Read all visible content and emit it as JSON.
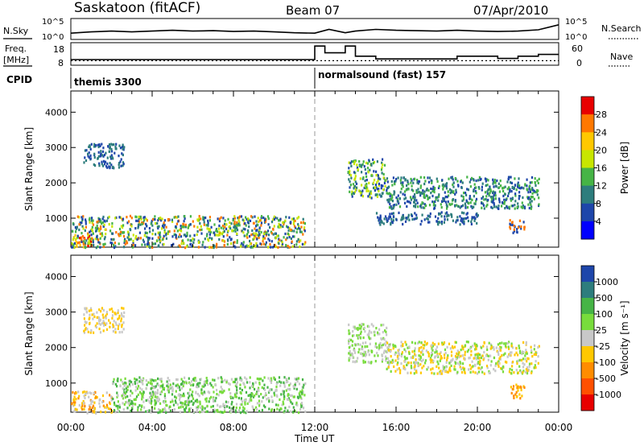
{
  "header": {
    "station": "Saskatoon (fitACF)",
    "beam": "Beam 07",
    "date": "07/Apr/2010"
  },
  "top_panels": {
    "nsky_label": "N.Sky",
    "nsky_ticks": [
      "10^5",
      "10^0"
    ],
    "nsearch_label": "N.Search",
    "nsearch_ticks": [
      "10^5",
      "10^0"
    ],
    "freq_label_1": "Freq.",
    "freq_label_2": "[MHz]",
    "freq_ticks": [
      "18",
      "8"
    ],
    "nave_label": "Nave",
    "nave_ticks": [
      "60",
      "0"
    ],
    "cpid_label": "CPID",
    "cpid_segments": [
      {
        "label": "themis 3300",
        "start": 0,
        "end": 12
      },
      {
        "label": "normalsound (fast) 157",
        "start": 12,
        "end": 24
      }
    ],
    "nsky_trace": [
      [
        0,
        1.5
      ],
      [
        1,
        1.8
      ],
      [
        2,
        2
      ],
      [
        3,
        1.8
      ],
      [
        4,
        2
      ],
      [
        5,
        2.2
      ],
      [
        6,
        2
      ],
      [
        7,
        2.1
      ],
      [
        8,
        1.9
      ],
      [
        9,
        2
      ],
      [
        10,
        1.8
      ],
      [
        11,
        1.6
      ],
      [
        12,
        1.5
      ],
      [
        12.7,
        2.4
      ],
      [
        13.5,
        1.6
      ],
      [
        14,
        2
      ],
      [
        15,
        2.4
      ],
      [
        16,
        2.2
      ],
      [
        17,
        2.1
      ],
      [
        18,
        2
      ],
      [
        19,
        2.2
      ],
      [
        20,
        2
      ],
      [
        21,
        1.9
      ],
      [
        22,
        2
      ],
      [
        23,
        2.3
      ],
      [
        24,
        3.5
      ]
    ],
    "freq_trace": [
      [
        0,
        10.5
      ],
      [
        12,
        10.5
      ],
      [
        12,
        16.5
      ],
      [
        12.5,
        16.5
      ],
      [
        12.5,
        13.5
      ],
      [
        13.5,
        13.5
      ],
      [
        13.5,
        16.5
      ],
      [
        14,
        16.5
      ],
      [
        14,
        12
      ],
      [
        15,
        12
      ],
      [
        15,
        10.8
      ],
      [
        19,
        10.8
      ],
      [
        19,
        12
      ],
      [
        21,
        12
      ],
      [
        21,
        11
      ],
      [
        22,
        11
      ],
      [
        22,
        12
      ],
      [
        23,
        12
      ],
      [
        23,
        12.8
      ],
      [
        24,
        12.8
      ]
    ],
    "nave_dotted_level": 12
  },
  "chart_data": [
    {
      "type": "heatmap",
      "title": "Power",
      "xlabel": "",
      "ylabel": "Slant Range [km]",
      "xlim": [
        0,
        24
      ],
      "ylim": [
        180,
        4600
      ],
      "xticks": [
        "00:00",
        "04:00",
        "08:00",
        "12:00",
        "16:00",
        "20:00",
        "00:00"
      ],
      "yticks": [
        1000,
        2000,
        3000,
        4000
      ],
      "colorbar_label": "Power [dB]",
      "colorbar_ticks": [
        "28",
        "24",
        "20",
        "16",
        "12",
        "8",
        "4"
      ],
      "colorbar_colors": [
        "#e80000",
        "#ff7800",
        "#ffc800",
        "#c8e600",
        "#46b446",
        "#2d7d7d",
        "#1e46aa",
        "#0000ff"
      ],
      "regions": [
        {
          "t0": 0,
          "t1": 1.0,
          "r0": 180,
          "r1": 600,
          "colors": [
            "#e80000",
            "#ff7800",
            "#ffc800"
          ]
        },
        {
          "t0": 0,
          "t1": 11.5,
          "r0": 200,
          "r1": 1100,
          "colors": [
            "#1e46aa",
            "#46b446",
            "#c8e600",
            "#ff7800",
            "#2d7d7d"
          ]
        },
        {
          "t0": 0.6,
          "t1": 2.6,
          "r0": 2450,
          "r1": 3150,
          "colors": [
            "#1e46aa",
            "#2d7d7d"
          ]
        },
        {
          "t0": 13.6,
          "t1": 15.5,
          "r0": 1600,
          "r1": 2700,
          "colors": [
            "#1e46aa",
            "#2d7d7d",
            "#46b446",
            "#c8e600"
          ]
        },
        {
          "t0": 15.5,
          "t1": 23.0,
          "r0": 1300,
          "r1": 2200,
          "colors": [
            "#1e46aa",
            "#2d7d7d",
            "#46b446"
          ]
        },
        {
          "t0": 15.0,
          "t1": 20.0,
          "r0": 850,
          "r1": 1200,
          "colors": [
            "#1e46aa",
            "#2d7d7d"
          ]
        },
        {
          "t0": 21.5,
          "t1": 22.3,
          "r0": 600,
          "r1": 1000,
          "colors": [
            "#1e46aa",
            "#ff7800"
          ]
        }
      ]
    },
    {
      "type": "heatmap",
      "title": "Velocity",
      "xlabel": "Time UT",
      "ylabel": "Slant Range [km]",
      "xlim": [
        0,
        24
      ],
      "ylim": [
        180,
        4600
      ],
      "xticks": [
        "00:00",
        "04:00",
        "08:00",
        "12:00",
        "16:00",
        "20:00",
        "00:00"
      ],
      "yticks": [
        1000,
        2000,
        3000,
        4000
      ],
      "colorbar_label": "Velocity [m s⁻¹]",
      "colorbar_ticks": [
        "1000",
        "500",
        "100",
        "25",
        "-25",
        "-100",
        "-500",
        "-1000"
      ],
      "colorbar_colors": [
        "#1e46aa",
        "#2d7d7d",
        "#46b446",
        "#78dc3c",
        "#c8c8c8",
        "#ffc800",
        "#ff8c00",
        "#ff5000",
        "#e80000"
      ],
      "regions": [
        {
          "t0": 0,
          "t1": 2.0,
          "r0": 180,
          "r1": 800,
          "colors": [
            "#ffc800",
            "#ff8c00",
            "#c8c8c8"
          ]
        },
        {
          "t0": 2.0,
          "t1": 11.5,
          "r0": 200,
          "r1": 1200,
          "colors": [
            "#78dc3c",
            "#46b446",
            "#c8c8c8"
          ]
        },
        {
          "t0": 0.6,
          "t1": 2.6,
          "r0": 2450,
          "r1": 3150,
          "colors": [
            "#c8c8c8",
            "#ffc800"
          ]
        },
        {
          "t0": 13.6,
          "t1": 15.5,
          "r0": 1600,
          "r1": 2700,
          "colors": [
            "#c8c8c8",
            "#78dc3c"
          ]
        },
        {
          "t0": 15.5,
          "t1": 23.0,
          "r0": 1300,
          "r1": 2200,
          "colors": [
            "#c8c8c8",
            "#78dc3c",
            "#ffc800"
          ]
        },
        {
          "t0": 21.5,
          "t1": 22.3,
          "r0": 600,
          "r1": 1000,
          "colors": [
            "#ffc800",
            "#ff8c00"
          ]
        }
      ]
    }
  ]
}
